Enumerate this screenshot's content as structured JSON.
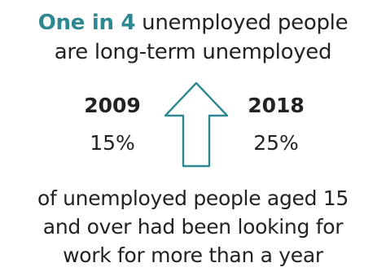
{
  "headline": {
    "accent": "One in 4",
    "line1_rest": " unemployed people",
    "line2": "are long-term unemployed"
  },
  "stats": {
    "left": {
      "year": "2009",
      "value": "15%"
    },
    "right": {
      "year": "2018",
      "value": "25%"
    }
  },
  "icon": "up-arrow-icon",
  "footer": {
    "line1": "of unemployed people aged 15",
    "line2": "and over had been looking for",
    "line3": "work for more than a year"
  },
  "colors": {
    "accent": "#2e8791",
    "text": "#222222"
  }
}
